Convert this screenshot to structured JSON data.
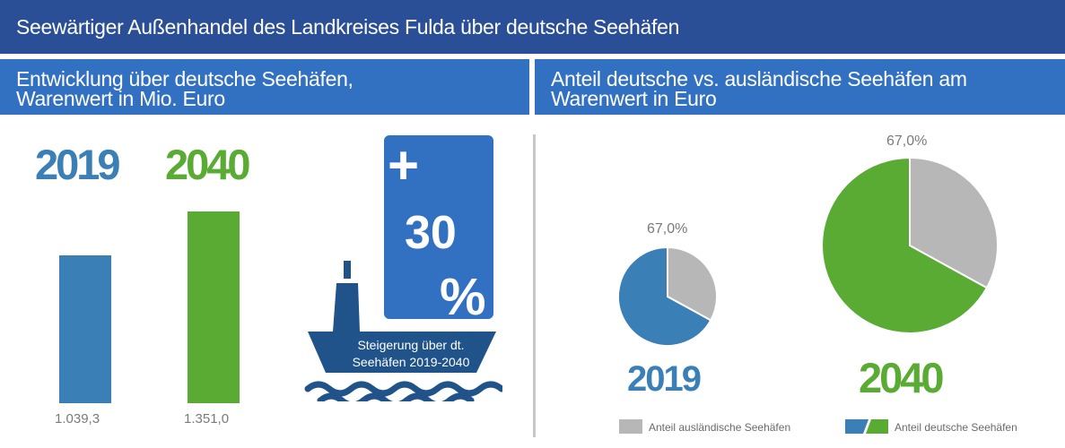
{
  "header": {
    "title": "Seewärtiger Außenhandel des Landkreises Fulda über deutsche Seehäfen"
  },
  "left_panel": {
    "title_line1": "Entwicklung über deutsche Seehäfen,",
    "title_line2": "Warenwert in Mio. Euro"
  },
  "right_panel": {
    "title_line1": "Anteil deutsche vs. ausländische Seehäfen am",
    "title_line2": "Warenwert in Euro"
  },
  "increase_badge": {
    "sign": "+",
    "value": "30",
    "unit": "%",
    "caption_line1": "Steigerung über dt.",
    "caption_line2": "Seehäfen 2019-2040"
  },
  "legend": {
    "foreign_label": "Anteil ausländische Seehäfen",
    "domestic_label": "Anteil deutsche Seehäfen"
  },
  "colors": {
    "title_bar": "#2a4f96",
    "subtitle_bar": "#3271c2",
    "year_2019": "#3a7fb5",
    "year_2040": "#5aab34",
    "foreign": "#b7b7b7",
    "ship": "#1f5389"
  },
  "chart_data": [
    {
      "type": "bar",
      "categories": [
        "2019",
        "2040"
      ],
      "values": [
        1039.3,
        1351.0
      ],
      "value_labels": [
        "1.039,3",
        "1.351,0"
      ],
      "ylabel": "",
      "ylim": [
        0,
        1500
      ]
    },
    {
      "type": "pie",
      "title": "2019",
      "slices": [
        {
          "name": "Anteil ausländische Seehäfen",
          "value": 33.0
        },
        {
          "name": "Anteil deutsche Seehäfen",
          "value": 67.0
        }
      ],
      "label": "67,0%"
    },
    {
      "type": "pie",
      "title": "2040",
      "slices": [
        {
          "name": "Anteil ausländische Seehäfen",
          "value": 33.0
        },
        {
          "name": "Anteil deutsche Seehäfen",
          "value": 67.0
        }
      ],
      "label": "67,0%"
    }
  ]
}
